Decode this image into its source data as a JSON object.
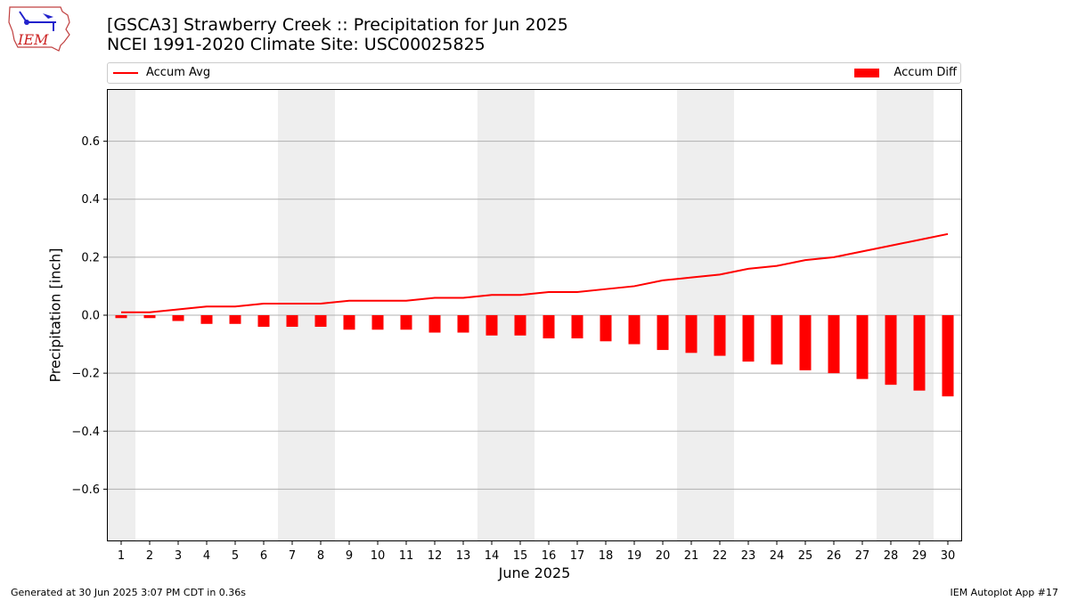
{
  "logo": {
    "text": "IEM"
  },
  "title": {
    "line1": "[GSCA3] Strawberry Creek :: Precipitation for Jun 2025",
    "line2": "NCEI 1991-2020 Climate Site: USC00025825"
  },
  "legend": {
    "line_label": "Accum Avg",
    "bar_label": "Accum Diff",
    "location": "top"
  },
  "footer": {
    "left": "Generated at 30 Jun 2025 3:07 PM CDT in 0.36s",
    "right": "IEM Autoplot App #17"
  },
  "colors": {
    "series": "#ff0000",
    "weekend": "#eeeeee",
    "grid": "#b0b0b0"
  },
  "chart_data": {
    "type": "bar",
    "title": "[GSCA3] Strawberry Creek :: Precipitation for Jun 2025",
    "subtitle": "NCEI 1991-2020 Climate Site: USC00025825",
    "xlabel": "June 2025",
    "ylabel": "Precipitation [inch]",
    "ylim": [
      -0.78,
      0.78
    ],
    "yticks": [
      -0.6,
      -0.4,
      -0.2,
      0.0,
      0.2,
      0.4,
      0.6
    ],
    "ytick_labels": [
      "−0.6",
      "−0.4",
      "−0.2",
      "0.0",
      "0.2",
      "0.4",
      "0.6"
    ],
    "grid": true,
    "shaded_weekend_days": [
      1,
      7,
      8,
      14,
      15,
      21,
      22,
      28,
      29
    ],
    "categories": [
      1,
      2,
      3,
      4,
      5,
      6,
      7,
      8,
      9,
      10,
      11,
      12,
      13,
      14,
      15,
      16,
      17,
      18,
      19,
      20,
      21,
      22,
      23,
      24,
      25,
      26,
      27,
      28,
      29,
      30
    ],
    "series": [
      {
        "name": "Accum Avg",
        "type": "line",
        "values": [
          0.01,
          0.01,
          0.02,
          0.03,
          0.03,
          0.04,
          0.04,
          0.04,
          0.05,
          0.05,
          0.05,
          0.06,
          0.06,
          0.07,
          0.07,
          0.08,
          0.08,
          0.09,
          0.1,
          0.12,
          0.13,
          0.14,
          0.16,
          0.17,
          0.19,
          0.2,
          0.22,
          0.24,
          0.26,
          0.28
        ]
      },
      {
        "name": "Accum Diff",
        "type": "bar",
        "values": [
          -0.01,
          -0.01,
          -0.02,
          -0.03,
          -0.03,
          -0.04,
          -0.04,
          -0.04,
          -0.05,
          -0.05,
          -0.05,
          -0.06,
          -0.06,
          -0.07,
          -0.07,
          -0.08,
          -0.08,
          -0.09,
          -0.1,
          -0.12,
          -0.13,
          -0.14,
          -0.16,
          -0.17,
          -0.19,
          -0.2,
          -0.22,
          -0.24,
          -0.26,
          -0.28
        ]
      }
    ]
  }
}
